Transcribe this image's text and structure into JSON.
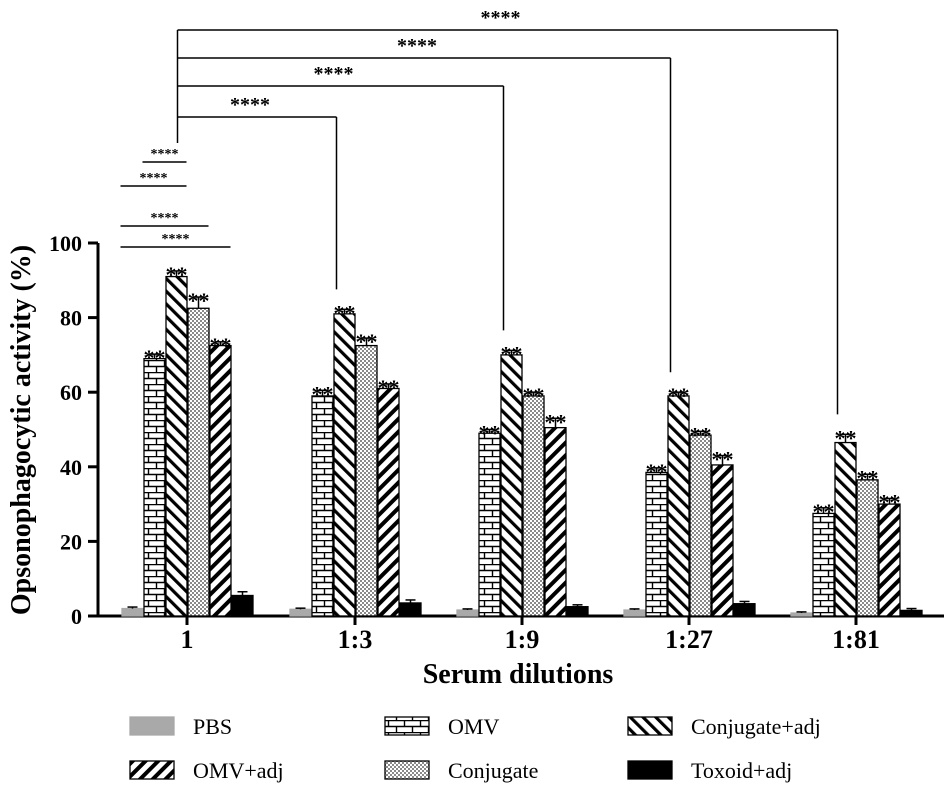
{
  "chart_data": {
    "type": "bar",
    "title": "",
    "xlabel": "Serum dilutions",
    "ylabel": "Opsonophagocytic activity (%)",
    "ylim": [
      0,
      100
    ],
    "yticks": [
      0,
      20,
      40,
      60,
      80,
      100
    ],
    "categories": [
      "1",
      "1:3",
      "1:9",
      "1:27",
      "1:81"
    ],
    "series": [
      {
        "name": "PBS",
        "pattern": "solid-gray",
        "values": [
          2,
          1.8,
          1.6,
          1.6,
          0.8
        ],
        "errors": [
          0.4,
          0.3,
          0.3,
          0.3,
          0.3
        ],
        "markers": [
          "",
          "",
          "",
          "",
          ""
        ]
      },
      {
        "name": "OMV",
        "pattern": "brick",
        "values": [
          69,
          59,
          49,
          38.5,
          27.5
        ],
        "errors": [
          1.2,
          1.5,
          1.0,
          1.2,
          1.5
        ],
        "markers": [
          "**",
          "**",
          "**",
          "**",
          "**"
        ]
      },
      {
        "name": "Conjugate+adj",
        "pattern": "diagonal-back",
        "values": [
          91,
          81,
          70,
          59,
          46.5
        ],
        "errors": [
          1.5,
          1.2,
          1.2,
          1.0,
          2.2
        ],
        "markers": [
          "**",
          "**",
          "**",
          "**",
          "**"
        ]
      },
      {
        "name": "Conjugate",
        "pattern": "checker",
        "values": [
          82.5,
          72.5,
          59,
          48.5,
          36.5
        ],
        "errors": [
          3.0,
          2.0,
          1.0,
          1.0,
          1.5
        ],
        "markers": [
          "**",
          "**",
          "**",
          "**",
          "**"
        ]
      },
      {
        "name": "OMV+adj",
        "pattern": "diagonal-fwd",
        "values": [
          72.5,
          61,
          50.5,
          40.5,
          30
        ],
        "errors": [
          1.0,
          1.2,
          2.5,
          2.5,
          1.5
        ],
        "markers": [
          "**",
          "**",
          "**",
          "**",
          "**"
        ]
      },
      {
        "name": "Toxoid+adj",
        "pattern": "solid-black",
        "values": [
          5.5,
          3.5,
          2.5,
          3.3,
          1.5
        ],
        "errors": [
          1.0,
          0.8,
          0.5,
          0.6,
          0.5
        ],
        "markers": [
          "",
          "",
          "",
          "",
          ""
        ]
      }
    ],
    "legend": {
      "placement": "bottom",
      "rows": [
        [
          "PBS",
          "OMV",
          "Conjugate+adj"
        ],
        [
          "OMV+adj",
          "Conjugate",
          "Toxoid+adj"
        ]
      ]
    },
    "annotations": {
      "local_brackets": [
        {
          "from_series": "PBS",
          "to_series": "Conjugate+adj",
          "label": "****"
        },
        {
          "from_series": "OMV",
          "to_series": "Conjugate+adj",
          "label": "****"
        },
        {
          "from_series": "PBS",
          "to_series": "Conjugate",
          "label": "****"
        },
        {
          "from_series": "PBS",
          "to_series": "OMV+adj",
          "label": "****"
        }
      ],
      "dilution_brackets": [
        {
          "from_category": "1",
          "to_category": "1:3",
          "label": "****"
        },
        {
          "from_category": "1",
          "to_category": "1:9",
          "label": "****"
        },
        {
          "from_category": "1",
          "to_category": "1:27",
          "label": "****"
        },
        {
          "from_category": "1",
          "to_category": "1:81",
          "label": "****"
        }
      ]
    }
  }
}
